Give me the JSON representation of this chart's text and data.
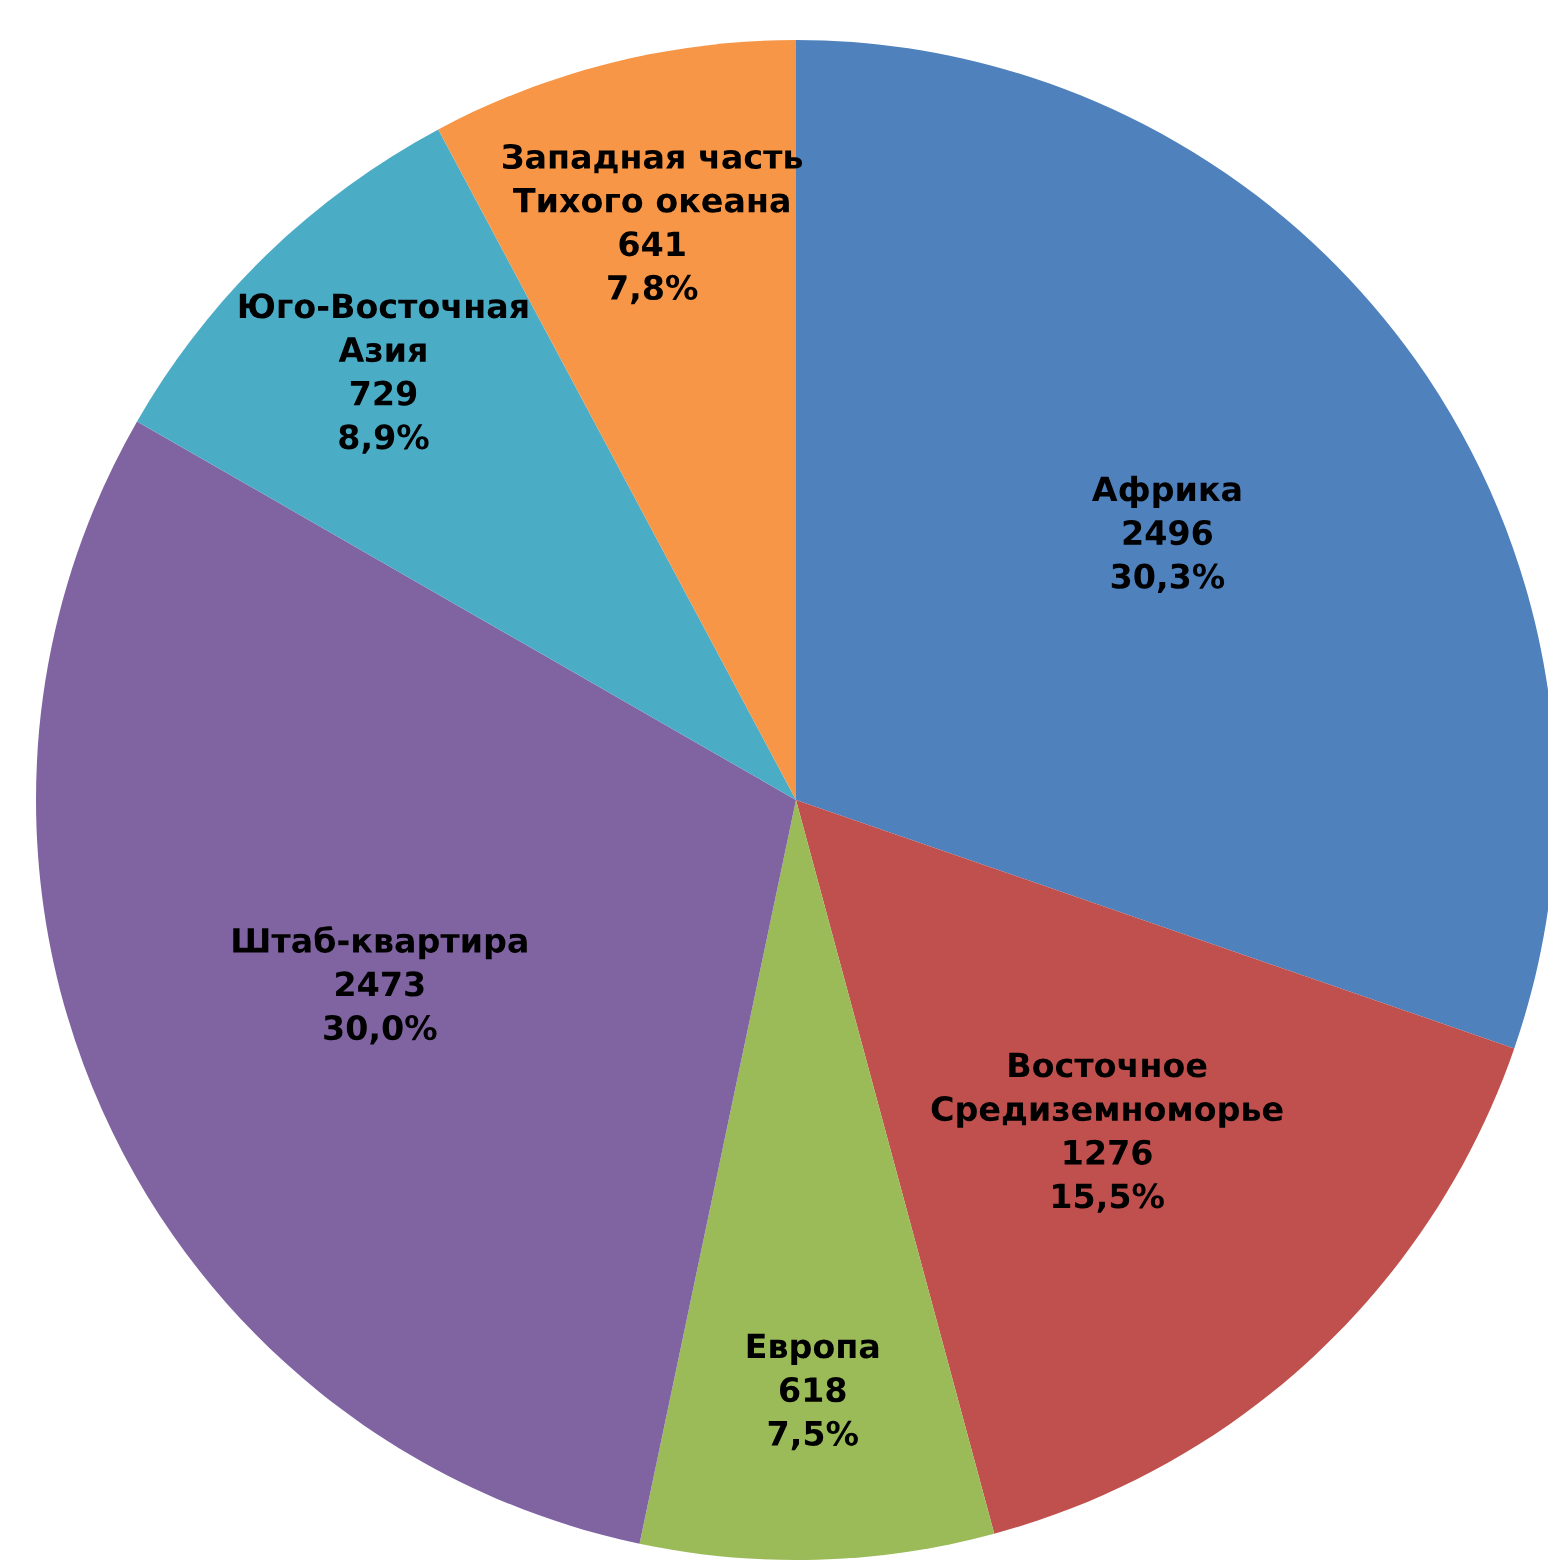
{
  "chart_data": {
    "type": "pie",
    "categories": [
      "Африка",
      "Восточное\nСредиземноморье",
      "Европа",
      "Штаб-квартира",
      "Юго-Восточная\nАзия",
      "Западная часть\nТихого океана"
    ],
    "values": [
      30.3,
      15.5,
      7.5,
      30.0,
      8.9,
      7.8
    ],
    "value_labels": [
      "2496\n30,3%",
      "1276\n15,5%",
      "618\n7,5%",
      "2473\n30,0%",
      "729\n8,9%",
      "641\n7,8%"
    ],
    "colors": [
      "#4f81bd",
      "#c0504d",
      "#9bbb59",
      "#8064a2",
      "#4bacc6",
      "#f79646"
    ]
  }
}
